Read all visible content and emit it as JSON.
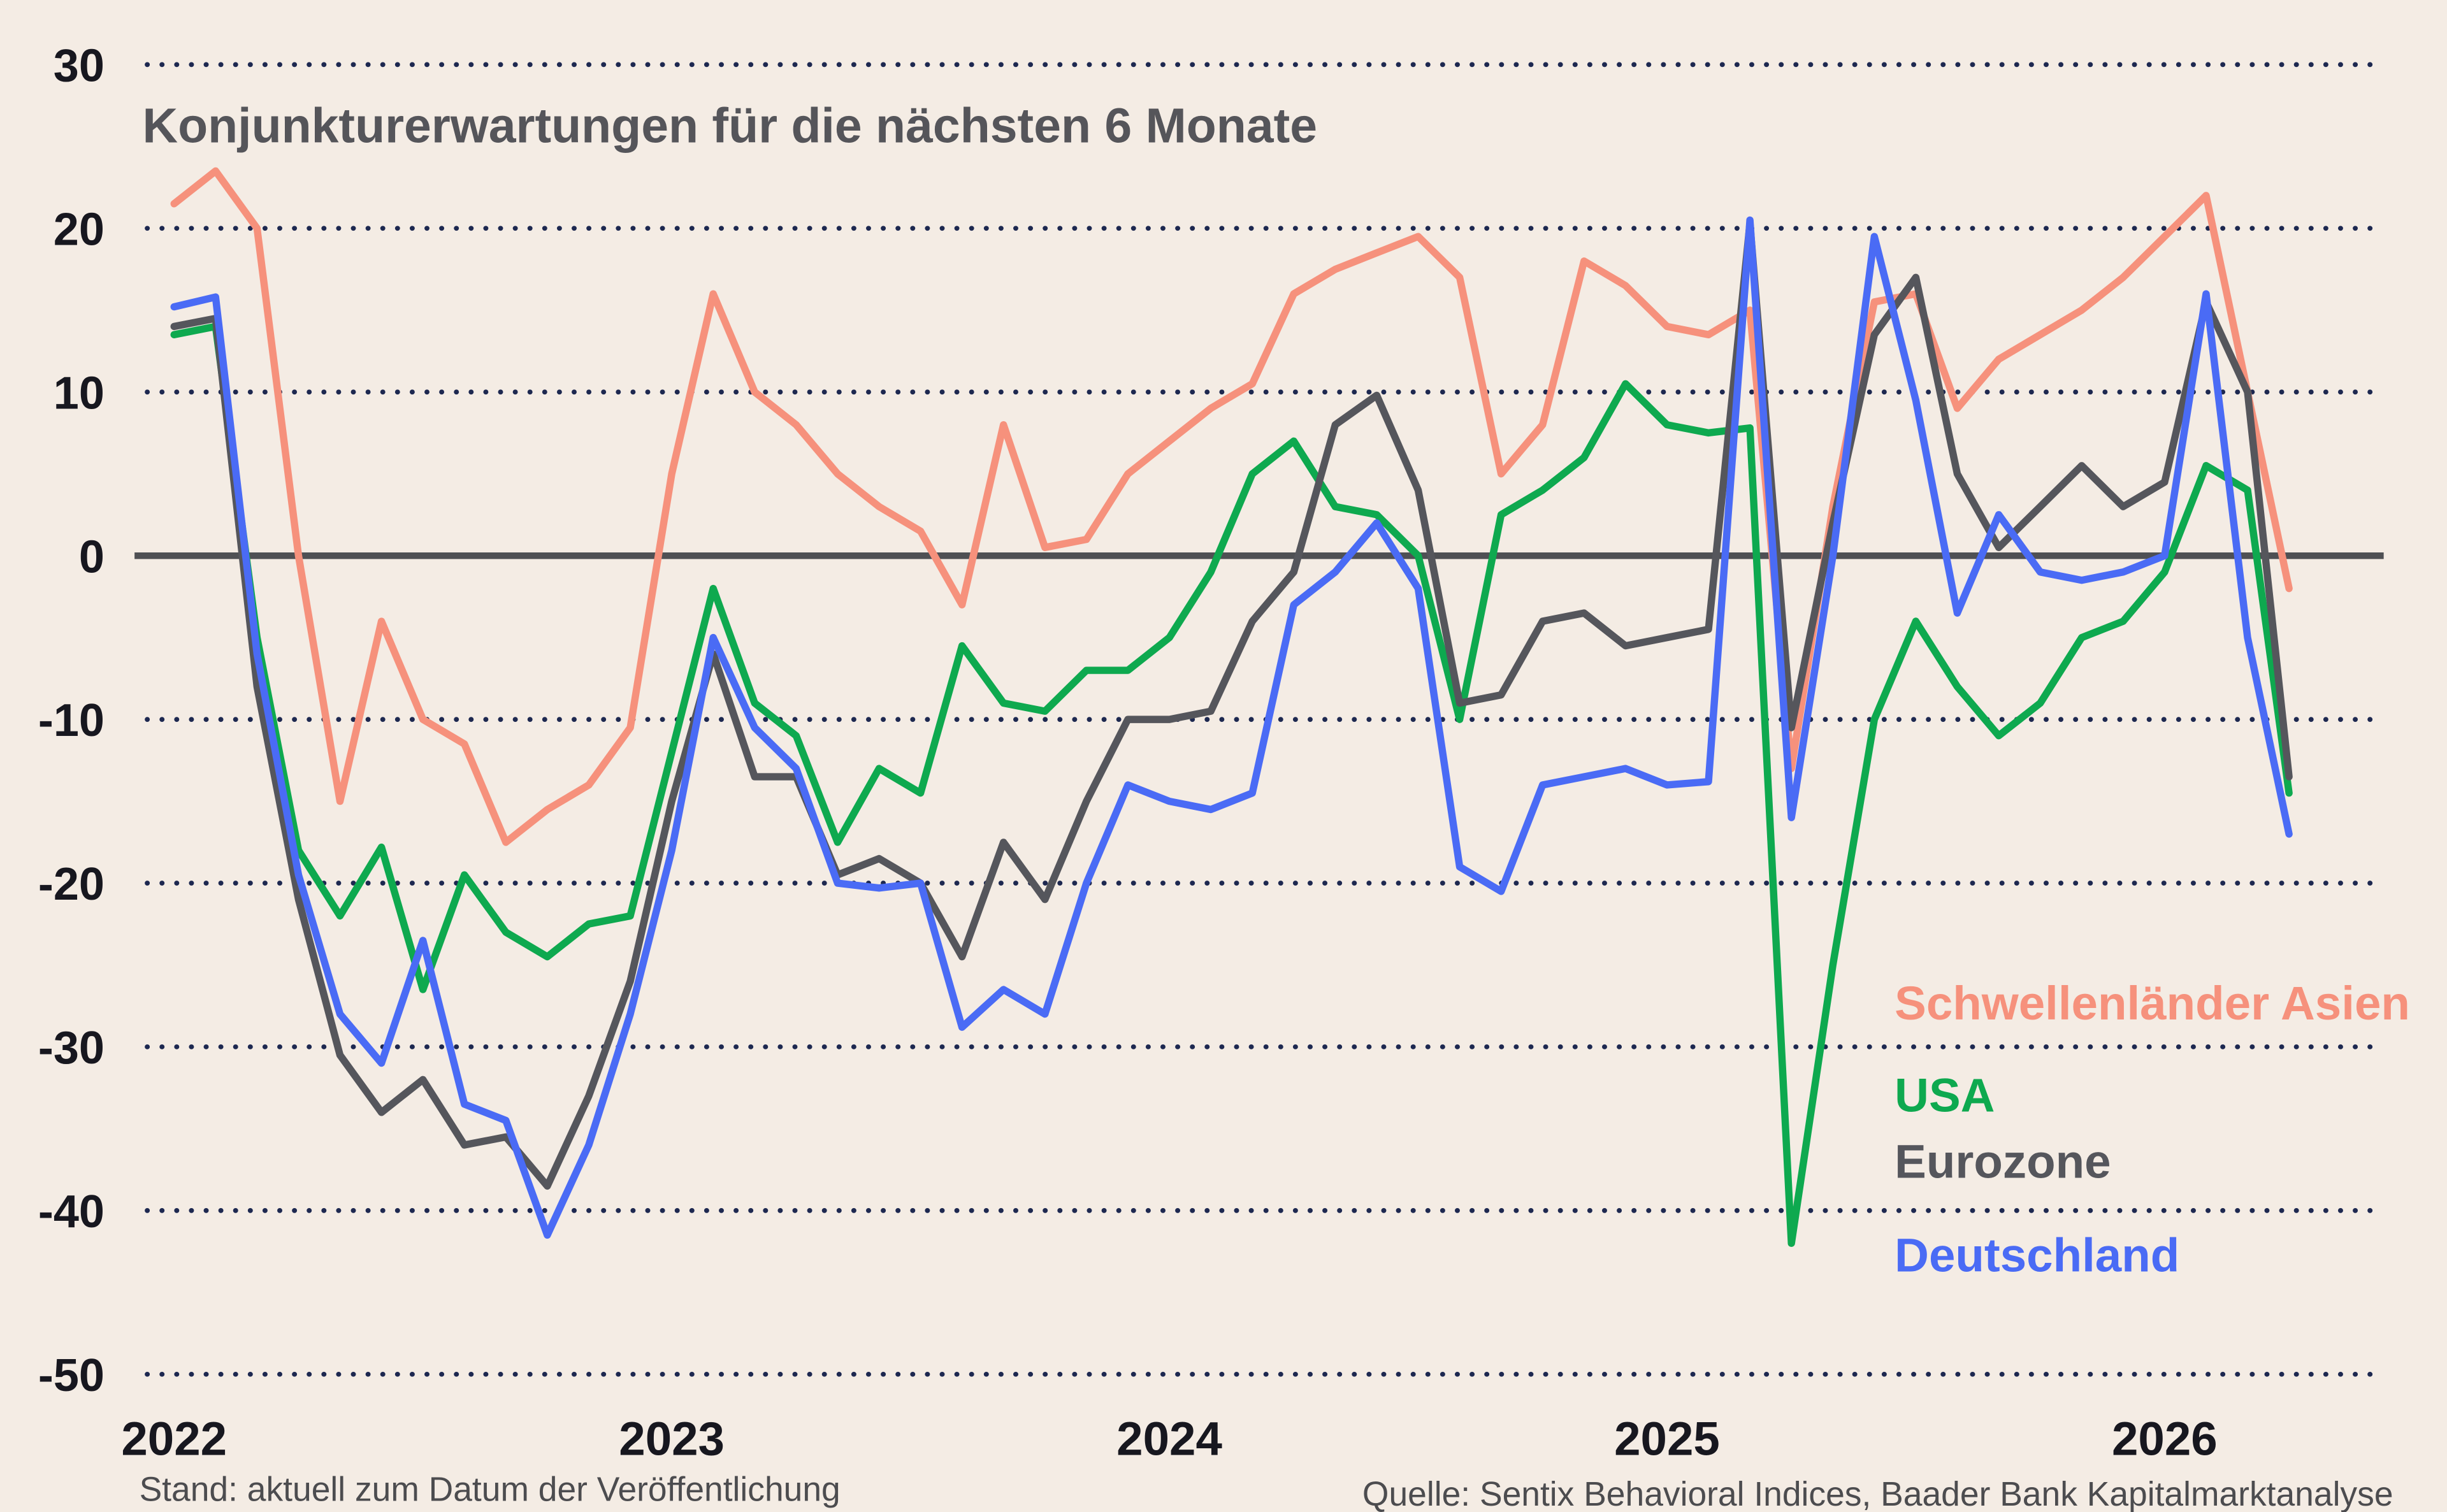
{
  "page": {
    "background": "#f4ece4",
    "footnote_left": "Stand: aktuell zum Datum der Veröffentlichung",
    "footnote_right": "Quelle: Sentix Behavioral Indices, Baader Bank Kapitalmarktanalyse"
  },
  "chart_data": {
    "type": "line",
    "title": "Konjunkturerwartungen für die nächsten 6 Monate",
    "grid": "dotted-horizontal",
    "grid_color": "#1d2850",
    "zero_line": true,
    "legend_position": "right-middle",
    "ylim": [
      -50,
      30
    ],
    "y_ticks": [
      30,
      20,
      10,
      0,
      -10,
      -20,
      -30,
      -40,
      -50
    ],
    "x_tick_labels": [
      "2022",
      "2023",
      "2024",
      "2025",
      "2026"
    ],
    "x": [
      "2022-01",
      "2022-02",
      "2022-03",
      "2022-04",
      "2022-05",
      "2022-06",
      "2022-07",
      "2022-08",
      "2022-09",
      "2022-10",
      "2022-11",
      "2022-12",
      "2023-01",
      "2023-02",
      "2023-03",
      "2023-04",
      "2023-05",
      "2023-06",
      "2023-07",
      "2023-08",
      "2023-09",
      "2023-10",
      "2023-11",
      "2023-12",
      "2024-01",
      "2024-02",
      "2024-03",
      "2024-04",
      "2024-05",
      "2024-06",
      "2024-07",
      "2024-08",
      "2024-09",
      "2024-10",
      "2024-11",
      "2024-12",
      "2025-01",
      "2025-02",
      "2025-03",
      "2025-04",
      "2025-05",
      "2025-06",
      "2025-07",
      "2025-08",
      "2025-09",
      "2025-10",
      "2025-11",
      "2025-12",
      "2026-01",
      "2026-02",
      "2026-03",
      "2026-04"
    ],
    "series": [
      {
        "name": "Schwellenländer Asien",
        "color": "#f6917c",
        "values": [
          21.5,
          23.5,
          20,
          0,
          -15,
          -4,
          -10,
          -11.5,
          -17.5,
          -15.5,
          -14,
          -10.5,
          5,
          16,
          10,
          8,
          5,
          3,
          1.5,
          -3,
          8,
          0.5,
          1,
          5,
          7,
          9,
          10.5,
          16,
          17.5,
          18.5,
          19.5,
          17,
          5,
          8,
          18,
          16.5,
          14,
          13.5,
          15,
          -13,
          3,
          15.5,
          16,
          9,
          12,
          13.5,
          15,
          17,
          19.5,
          22,
          10,
          -2
        ]
      },
      {
        "name": "USA",
        "color": "#0ea94f",
        "values": [
          13.5,
          14,
          -5,
          -18,
          -22,
          -17.8,
          -26.5,
          -19.5,
          -23,
          -24.5,
          -22.5,
          -22,
          -12,
          -2,
          -9,
          -11,
          -17.5,
          -13,
          -14.5,
          -5.5,
          -9,
          -9.5,
          -7,
          -7,
          -5,
          -1,
          5,
          7,
          3,
          2.5,
          0,
          -10,
          2.5,
          4,
          6,
          10.5,
          8,
          7.5,
          7.8,
          -42,
          -25,
          -10,
          -4,
          -8,
          -11,
          -9,
          -5,
          -4,
          -1,
          5.5,
          4,
          -14.5
        ]
      },
      {
        "name": "Eurozone",
        "color": "#55565c",
        "values": [
          14,
          14.5,
          -8,
          -21,
          -30.5,
          -34,
          -32,
          -36,
          -35.5,
          -38.5,
          -33,
          -26,
          -15,
          -6,
          -13.5,
          -13.5,
          -19.5,
          -18.5,
          -20,
          -24.5,
          -17.5,
          -21,
          -15,
          -10,
          -10,
          -9.5,
          -4,
          -1,
          8,
          9.8,
          4,
          -9,
          -8.5,
          -4,
          -3.5,
          -5.5,
          -5,
          -4.5,
          20.3,
          -10.5,
          2,
          13.5,
          17,
          5,
          0.5,
          3,
          5.5,
          3,
          4.5,
          15.5,
          10,
          -13.5
        ]
      },
      {
        "name": "Deutschland",
        "color": "#4a6bf5",
        "values": [
          15.2,
          15.8,
          -6,
          -19.5,
          -28,
          -31,
          -23.5,
          -33.5,
          -34.5,
          -41.5,
          -36,
          -28,
          -18,
          -5,
          -10.5,
          -13,
          -20,
          -20.3,
          -20,
          -28.8,
          -26.5,
          -28,
          -20,
          -14,
          -15,
          -15.5,
          -14.5,
          -3,
          -1,
          2,
          -2,
          -19,
          -20.5,
          -14,
          -13.5,
          -13,
          -14,
          -13.8,
          20.5,
          -16,
          0,
          19.5,
          9.5,
          -3.5,
          2.5,
          -1,
          -1.5,
          -1,
          0,
          16,
          -5,
          -17
        ]
      }
    ]
  }
}
